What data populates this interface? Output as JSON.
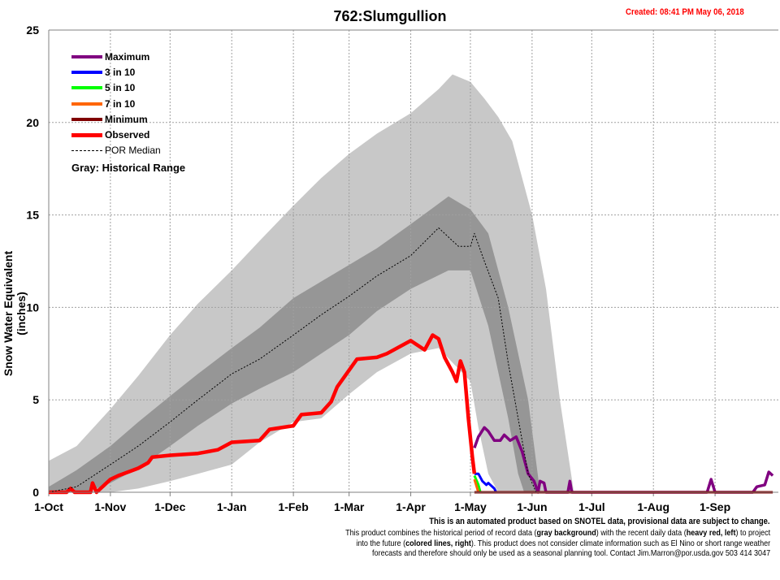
{
  "chart_data": {
    "type": "area",
    "title": "762:Slumgullion",
    "created": "Created: 08:41 PM May 06, 2018",
    "xlabel": "",
    "ylabel": "Snow Water Equivalent (inches)",
    "ylim": [
      0,
      25
    ],
    "yticks": [
      0,
      5,
      10,
      15,
      20,
      25
    ],
    "xlim": [
      "2017-10-01",
      "2018-10-01"
    ],
    "xticks": [
      {
        "date": "2017-10-01",
        "label": "1-Oct"
      },
      {
        "date": "2017-11-01",
        "label": "1-Nov"
      },
      {
        "date": "2017-12-01",
        "label": "1-Dec"
      },
      {
        "date": "2018-01-01",
        "label": "1-Jan"
      },
      {
        "date": "2018-02-01",
        "label": "1-Feb"
      },
      {
        "date": "2018-03-01",
        "label": "1-Mar"
      },
      {
        "date": "2018-04-01",
        "label": "1-Apr"
      },
      {
        "date": "2018-05-01",
        "label": "1-May"
      },
      {
        "date": "2018-06-01",
        "label": "1-Jun"
      },
      {
        "date": "2018-07-01",
        "label": "1-Jul"
      },
      {
        "date": "2018-08-01",
        "label": "1-Aug"
      },
      {
        "date": "2018-09-01",
        "label": "1-Sep"
      }
    ],
    "grid": true,
    "legend_position": "top-left",
    "legend_note": "Gray: Historical Range",
    "bands": [
      {
        "role": "historical-range",
        "color": "#c8c8c8",
        "upper": [
          [
            "2017-10-01",
            1.7
          ],
          [
            "2017-10-15",
            2.5
          ],
          [
            "2017-11-01",
            4.5
          ],
          [
            "2017-11-15",
            6.3
          ],
          [
            "2017-12-01",
            8.5
          ],
          [
            "2017-12-15",
            10.2
          ],
          [
            "2018-01-01",
            12.0
          ],
          [
            "2018-01-15",
            13.6
          ],
          [
            "2018-02-01",
            15.5
          ],
          [
            "2018-02-15",
            17.0
          ],
          [
            "2018-03-01",
            18.3
          ],
          [
            "2018-03-15",
            19.4
          ],
          [
            "2018-04-01",
            20.5
          ],
          [
            "2018-04-15",
            21.8
          ],
          [
            "2018-04-22",
            22.6
          ],
          [
            "2018-05-01",
            22.2
          ],
          [
            "2018-05-08",
            21.3
          ],
          [
            "2018-05-15",
            20.3
          ],
          [
            "2018-05-22",
            19.0
          ],
          [
            "2018-06-01",
            15.0
          ],
          [
            "2018-06-08",
            11.0
          ],
          [
            "2018-06-15",
            5.0
          ],
          [
            "2018-06-22",
            0
          ],
          [
            "2018-10-01",
            0
          ]
        ],
        "lower": [
          [
            "2017-10-01",
            0
          ],
          [
            "2017-11-01",
            0
          ],
          [
            "2017-11-15",
            0.2
          ],
          [
            "2017-12-01",
            0.6
          ],
          [
            "2017-12-15",
            1.0
          ],
          [
            "2018-01-01",
            1.5
          ],
          [
            "2018-01-15",
            2.7
          ],
          [
            "2018-02-01",
            3.8
          ],
          [
            "2018-02-15",
            4.0
          ],
          [
            "2018-03-01",
            5.3
          ],
          [
            "2018-03-15",
            6.5
          ],
          [
            "2018-04-01",
            7.5
          ],
          [
            "2018-04-15",
            7.8
          ],
          [
            "2018-05-01",
            6.0
          ],
          [
            "2018-05-05",
            3.5
          ],
          [
            "2018-05-10",
            1.0
          ],
          [
            "2018-05-15",
            0
          ],
          [
            "2018-10-01",
            0
          ]
        ]
      },
      {
        "role": "interquantile-range",
        "color": "#969696",
        "upper": [
          [
            "2017-10-01",
            0.3
          ],
          [
            "2017-10-15",
            1.2
          ],
          [
            "2017-11-01",
            2.5
          ],
          [
            "2017-11-15",
            3.8
          ],
          [
            "2017-12-01",
            5.2
          ],
          [
            "2017-12-15",
            6.4
          ],
          [
            "2018-01-01",
            7.8
          ],
          [
            "2018-01-15",
            8.9
          ],
          [
            "2018-02-01",
            10.5
          ],
          [
            "2018-02-15",
            11.4
          ],
          [
            "2018-03-01",
            12.3
          ],
          [
            "2018-03-15",
            13.2
          ],
          [
            "2018-04-01",
            14.5
          ],
          [
            "2018-04-20",
            16.0
          ],
          [
            "2018-05-01",
            15.3
          ],
          [
            "2018-05-10",
            14.0
          ],
          [
            "2018-05-20",
            10.0
          ],
          [
            "2018-05-30",
            5.0
          ],
          [
            "2018-06-05",
            0
          ],
          [
            "2018-10-01",
            0
          ]
        ],
        "lower": [
          [
            "2017-10-01",
            0
          ],
          [
            "2017-10-20",
            0
          ],
          [
            "2017-11-01",
            0.5
          ],
          [
            "2017-11-15",
            1.3
          ],
          [
            "2017-12-01",
            2.5
          ],
          [
            "2017-12-15",
            3.6
          ],
          [
            "2018-01-01",
            4.8
          ],
          [
            "2018-01-15",
            5.6
          ],
          [
            "2018-02-01",
            6.5
          ],
          [
            "2018-02-15",
            7.5
          ],
          [
            "2018-03-01",
            8.5
          ],
          [
            "2018-03-15",
            9.8
          ],
          [
            "2018-04-01",
            11.0
          ],
          [
            "2018-04-20",
            12.0
          ],
          [
            "2018-05-01",
            12.0
          ],
          [
            "2018-05-10",
            9.0
          ],
          [
            "2018-05-20",
            4.0
          ],
          [
            "2018-05-25",
            1.0
          ],
          [
            "2018-05-28",
            0
          ],
          [
            "2018-10-01",
            0
          ]
        ]
      }
    ],
    "series": [
      {
        "name": "Maximum",
        "color": "#800080",
        "width": 3.5,
        "points": [
          [
            "2018-05-03",
            2.4
          ],
          [
            "2018-05-05",
            3.0
          ],
          [
            "2018-05-08",
            3.5
          ],
          [
            "2018-05-10",
            3.3
          ],
          [
            "2018-05-13",
            2.8
          ],
          [
            "2018-05-16",
            2.8
          ],
          [
            "2018-05-18",
            3.1
          ],
          [
            "2018-05-21",
            2.8
          ],
          [
            "2018-05-24",
            3.0
          ],
          [
            "2018-05-27",
            2.2
          ],
          [
            "2018-05-30",
            1.0
          ],
          [
            "2018-06-02",
            0.6
          ],
          [
            "2018-06-04",
            0
          ],
          [
            "2018-06-05",
            0.6
          ],
          [
            "2018-06-07",
            0.5
          ],
          [
            "2018-06-08",
            0
          ],
          [
            "2018-06-19",
            0
          ],
          [
            "2018-06-20",
            0.6
          ],
          [
            "2018-06-21",
            0
          ],
          [
            "2018-08-28",
            0
          ],
          [
            "2018-08-30",
            0.7
          ],
          [
            "2018-09-01",
            0
          ],
          [
            "2018-09-20",
            0
          ],
          [
            "2018-09-22",
            0.3
          ],
          [
            "2018-09-26",
            0.4
          ],
          [
            "2018-09-28",
            1.1
          ],
          [
            "2018-09-30",
            0.9
          ]
        ]
      },
      {
        "name": "3 in 10",
        "color": "#0000ff",
        "width": 3,
        "points": [
          [
            "2018-05-03",
            1.0
          ],
          [
            "2018-05-05",
            1.0
          ],
          [
            "2018-05-07",
            0.6
          ],
          [
            "2018-05-09",
            0.4
          ],
          [
            "2018-05-10",
            0.5
          ],
          [
            "2018-05-13",
            0.2
          ],
          [
            "2018-05-14",
            0
          ]
        ]
      },
      {
        "name": "5 in 10",
        "color": "#00ff00",
        "width": 3,
        "points": [
          [
            "2018-05-03",
            0.9
          ],
          [
            "2018-05-05",
            0.4
          ],
          [
            "2018-05-06",
            0
          ]
        ]
      },
      {
        "name": "7 in 10",
        "color": "#ff6600",
        "width": 3,
        "points": [
          [
            "2018-05-03",
            0.7
          ],
          [
            "2018-05-05",
            0
          ]
        ]
      },
      {
        "name": "Minimum",
        "color": "#800000",
        "width": 3,
        "points": [
          [
            "2018-05-03",
            0
          ],
          [
            "2018-09-30",
            0
          ]
        ]
      },
      {
        "name": "Observed",
        "color": "#ff0000",
        "width": 4.5,
        "points": [
          [
            "2017-10-01",
            0
          ],
          [
            "2017-10-10",
            0
          ],
          [
            "2017-10-12",
            0.2
          ],
          [
            "2017-10-14",
            0
          ],
          [
            "2017-10-22",
            0
          ],
          [
            "2017-10-23",
            0.5
          ],
          [
            "2017-10-25",
            0
          ],
          [
            "2017-11-01",
            0.7
          ],
          [
            "2017-11-05",
            0.9
          ],
          [
            "2017-11-10",
            1.1
          ],
          [
            "2017-11-15",
            1.3
          ],
          [
            "2017-11-20",
            1.6
          ],
          [
            "2017-11-22",
            1.9
          ],
          [
            "2017-12-01",
            2.0
          ],
          [
            "2017-12-15",
            2.1
          ],
          [
            "2017-12-25",
            2.3
          ],
          [
            "2018-01-01",
            2.7
          ],
          [
            "2018-01-15",
            2.8
          ],
          [
            "2018-01-20",
            3.4
          ],
          [
            "2018-02-01",
            3.6
          ],
          [
            "2018-02-05",
            4.2
          ],
          [
            "2018-02-15",
            4.3
          ],
          [
            "2018-02-20",
            4.9
          ],
          [
            "2018-02-23",
            5.7
          ],
          [
            "2018-03-01",
            6.6
          ],
          [
            "2018-03-05",
            7.2
          ],
          [
            "2018-03-15",
            7.3
          ],
          [
            "2018-03-20",
            7.5
          ],
          [
            "2018-04-01",
            8.2
          ],
          [
            "2018-04-08",
            7.7
          ],
          [
            "2018-04-12",
            8.5
          ],
          [
            "2018-04-15",
            8.3
          ],
          [
            "2018-04-18",
            7.3
          ],
          [
            "2018-04-22",
            6.5
          ],
          [
            "2018-04-24",
            6.0
          ],
          [
            "2018-04-26",
            7.1
          ],
          [
            "2018-04-28",
            6.5
          ],
          [
            "2018-04-30",
            4.0
          ],
          [
            "2018-05-02",
            1.9
          ],
          [
            "2018-05-03",
            1.0
          ]
        ]
      },
      {
        "name": "POR Median",
        "color": "#000000",
        "width": 1,
        "dashed": true,
        "points": [
          [
            "2017-10-01",
            0
          ],
          [
            "2017-10-15",
            0.3
          ],
          [
            "2017-11-01",
            1.5
          ],
          [
            "2017-11-15",
            2.5
          ],
          [
            "2017-12-01",
            3.8
          ],
          [
            "2017-12-15",
            5.0
          ],
          [
            "2018-01-01",
            6.4
          ],
          [
            "2018-01-15",
            7.2
          ],
          [
            "2018-02-01",
            8.5
          ],
          [
            "2018-02-15",
            9.6
          ],
          [
            "2018-03-01",
            10.6
          ],
          [
            "2018-03-15",
            11.7
          ],
          [
            "2018-04-01",
            12.8
          ],
          [
            "2018-04-15",
            14.3
          ],
          [
            "2018-04-20",
            13.8
          ],
          [
            "2018-04-25",
            13.3
          ],
          [
            "2018-05-01",
            13.3
          ],
          [
            "2018-05-03",
            14.0
          ],
          [
            "2018-05-08",
            12.5
          ],
          [
            "2018-05-15",
            10.5
          ],
          [
            "2018-05-20",
            7.0
          ],
          [
            "2018-05-25",
            4.0
          ],
          [
            "2018-05-30",
            1.0
          ],
          [
            "2018-06-03",
            0
          ]
        ]
      }
    ],
    "legend": [
      {
        "label": "Maximum",
        "color": "#800080"
      },
      {
        "label": "3 in 10",
        "color": "#0000ff"
      },
      {
        "label": "5 in 10",
        "color": "#00ff00"
      },
      {
        "label": "7 in 10",
        "color": "#ff6600"
      },
      {
        "label": "Minimum",
        "color": "#800000"
      },
      {
        "label": "Observed",
        "color": "#ff0000"
      },
      {
        "label": "POR Median",
        "color": "#000000",
        "dashed": true
      }
    ]
  },
  "footer": {
    "line1": "This is an automated product based on SNOTEL data, provisional data are subject to change.",
    "line2a": "This product combines the historical period of record data (",
    "line2b": "gray background",
    "line2c": ") with the recent daily data (",
    "line2d": "heavy red, left",
    "line2e": ") to project",
    "line3a": "into the future (",
    "line3b": "colored lines, right",
    "line3c": "). This product does not consider climate information such as El Nino or short range weather",
    "line4": "forecasts and therefore should only be used as a seasonal planning tool. Contact Jim.Marron@por.usda.gov 503 414 3047"
  }
}
